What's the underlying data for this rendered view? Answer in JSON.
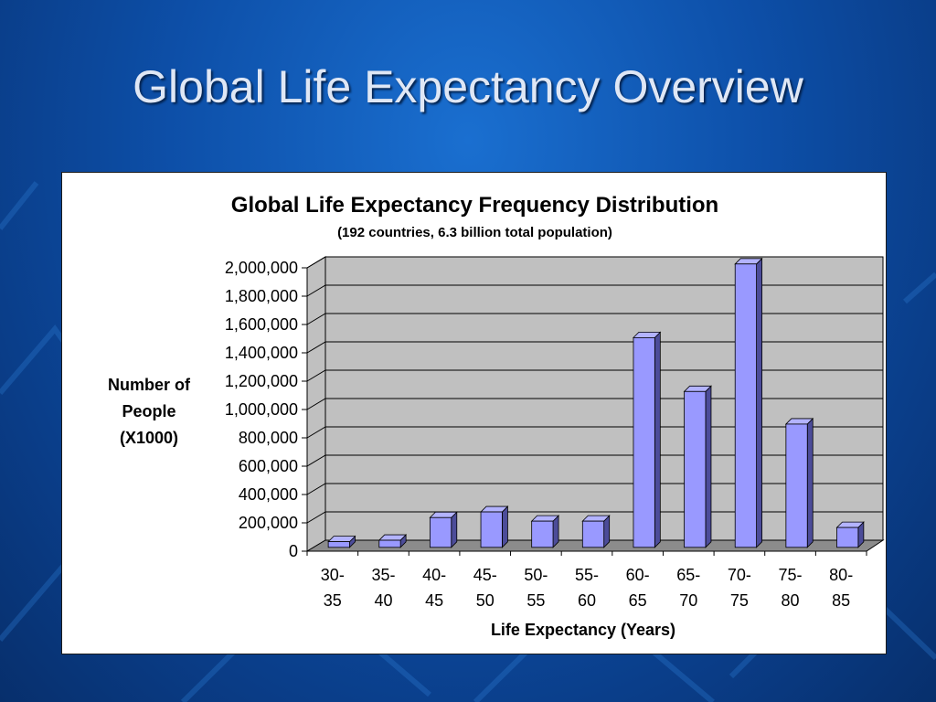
{
  "slide": {
    "title": "Global Life Expectancy Overview"
  },
  "colors": {
    "background": "#0d4fa8",
    "bar_face": "#9999ff",
    "bar_top": "#b3b3ff",
    "bar_side": "#4c4c99",
    "plot_wall": "#c0c0c0"
  },
  "chart_data": {
    "type": "bar",
    "title": "Global Life Expectancy Frequency Distribution",
    "subtitle": "(192 countries, 6.3 billion total population)",
    "xlabel": "Life Expectancy (Years)",
    "ylabel_lines": [
      "Number of",
      "People",
      "(X1000)"
    ],
    "categories": [
      [
        "30-",
        "35"
      ],
      [
        "35-",
        "40"
      ],
      [
        "40-",
        "45"
      ],
      [
        "45-",
        "50"
      ],
      [
        "50-",
        "55"
      ],
      [
        "55-",
        "60"
      ],
      [
        "60-",
        "65"
      ],
      [
        "65-",
        "70"
      ],
      [
        "70-",
        "75"
      ],
      [
        "75-",
        "80"
      ],
      [
        "80-",
        "85"
      ]
    ],
    "values": [
      40000,
      50000,
      210000,
      250000,
      185000,
      185000,
      1480000,
      1100000,
      2000000,
      870000,
      140000
    ],
    "y_ticks": [
      "0",
      "200,000",
      "400,000",
      "600,000",
      "800,000",
      "1,000,000",
      "1,200,000",
      "1,400,000",
      "1,600,000",
      "1,800,000",
      "2,000,000"
    ],
    "ylim": [
      0,
      2000000
    ],
    "grid": true,
    "style": "3d-column"
  }
}
